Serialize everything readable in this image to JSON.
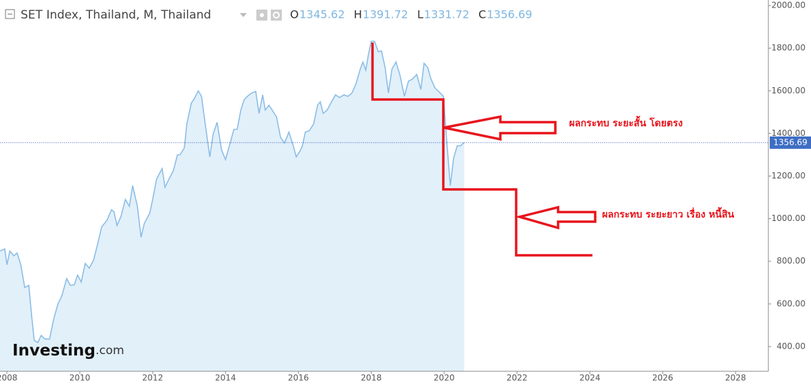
{
  "chart_data": {
    "type": "area",
    "title": "SET Index, Thailand, M, Thailand",
    "header_stats": [
      {
        "label": "O",
        "value": 1345.62
      },
      {
        "label": "H",
        "value": 1391.72
      },
      {
        "label": "L",
        "value": 1331.72
      },
      {
        "label": "C",
        "value": 1356.69
      }
    ],
    "watermark": {
      "brand": "Investing",
      "suffix": ".com"
    },
    "annotations": [
      "ผลกระทบ ระยะสั้น  โดยตรง",
      "ผลกระทบ ระยะยาว  เรื่อง หนี้สิน"
    ],
    "line_color": "#8bbde6",
    "fill_color": "#e2f0fa",
    "annotation_color": "#e8141c",
    "xlim": [
      2007.81,
      2028.9
    ],
    "ylim": [
      284,
      2026
    ],
    "xticks": [
      2008,
      2010,
      2012,
      2014,
      2016,
      2018,
      2020,
      2022,
      2024,
      2026,
      2028
    ],
    "yticks": [
      {
        "value": 400,
        "label": "400.00"
      },
      {
        "value": 600,
        "label": "600.00"
      },
      {
        "value": 800,
        "label": "800.00"
      },
      {
        "value": 1000,
        "label": "1000.00"
      },
      {
        "value": 1200,
        "label": "1200.00"
      },
      {
        "value": 1400,
        "label": "1400.00"
      },
      {
        "value": 1600,
        "label": "1600.00"
      },
      {
        "value": 1800,
        "label": "1800.00"
      },
      {
        "value": 2000,
        "label": "2000.00"
      }
    ],
    "x": [
      2007.81,
      2007.94,
      2008.0,
      2008.08,
      2008.19,
      2008.28,
      2008.38,
      2008.49,
      2008.6,
      2008.68,
      2008.75,
      2008.85,
      2008.94,
      2009.04,
      2009.17,
      2009.28,
      2009.4,
      2009.51,
      2009.64,
      2009.74,
      2009.85,
      2009.94,
      2010.04,
      2010.15,
      2010.26,
      2010.38,
      2010.49,
      2010.6,
      2010.75,
      2010.87,
      2010.94,
      2011.02,
      2011.13,
      2011.25,
      2011.36,
      2011.45,
      2011.58,
      2011.68,
      2011.77,
      2011.92,
      2012.0,
      2012.11,
      2012.26,
      2012.34,
      2012.45,
      2012.57,
      2012.68,
      2012.75,
      2012.87,
      2012.94,
      2013.06,
      2013.15,
      2013.25,
      2013.34,
      2013.43,
      2013.57,
      2013.66,
      2013.77,
      2013.89,
      2014.0,
      2014.09,
      2014.23,
      2014.32,
      2014.42,
      2014.51,
      2014.6,
      2014.72,
      2014.83,
      2014.92,
      2015.02,
      2015.09,
      2015.19,
      2015.28,
      2015.4,
      2015.51,
      2015.62,
      2015.74,
      2015.85,
      2015.94,
      2016.04,
      2016.11,
      2016.19,
      2016.3,
      2016.42,
      2016.53,
      2016.6,
      2016.68,
      2016.79,
      2016.91,
      2017.02,
      2017.13,
      2017.25,
      2017.36,
      2017.47,
      2017.58,
      2017.7,
      2017.77,
      2017.85,
      2017.92,
      2018.0,
      2018.09,
      2018.19,
      2018.28,
      2018.38,
      2018.47,
      2018.57,
      2018.68,
      2018.79,
      2018.91,
      2019.02,
      2019.13,
      2019.25,
      2019.36,
      2019.45,
      2019.55,
      2019.64,
      2019.75,
      2019.89,
      2019.98,
      2020.08,
      2020.17,
      2020.26,
      2020.36,
      2020.45,
      2020.55
    ],
    "values": [
      848,
      858,
      784,
      848,
      826,
      839,
      784,
      677,
      687,
      542,
      429,
      419,
      452,
      435,
      435,
      526,
      600,
      639,
      719,
      687,
      690,
      735,
      703,
      790,
      768,
      806,
      881,
      961,
      994,
      1042,
      1032,
      968,
      1010,
      1090,
      1058,
      1155,
      1058,
      913,
      977,
      1026,
      1090,
      1187,
      1235,
      1148,
      1187,
      1226,
      1300,
      1300,
      1332,
      1445,
      1542,
      1565,
      1600,
      1574,
      1461,
      1290,
      1397,
      1452,
      1323,
      1277,
      1332,
      1419,
      1419,
      1510,
      1558,
      1574,
      1590,
      1597,
      1494,
      1581,
      1510,
      1532,
      1510,
      1477,
      1381,
      1355,
      1406,
      1348,
      1290,
      1316,
      1342,
      1406,
      1413,
      1445,
      1535,
      1548,
      1494,
      1510,
      1548,
      1581,
      1568,
      1581,
      1574,
      1590,
      1632,
      1703,
      1735,
      1697,
      1768,
      1832,
      1832,
      1784,
      1787,
      1710,
      1590,
      1703,
      1735,
      1671,
      1574,
      1645,
      1655,
      1677,
      1606,
      1729,
      1710,
      1655,
      1613,
      1590,
      1574,
      1348,
      1155,
      1284,
      1342,
      1342,
      1358
    ]
  }
}
